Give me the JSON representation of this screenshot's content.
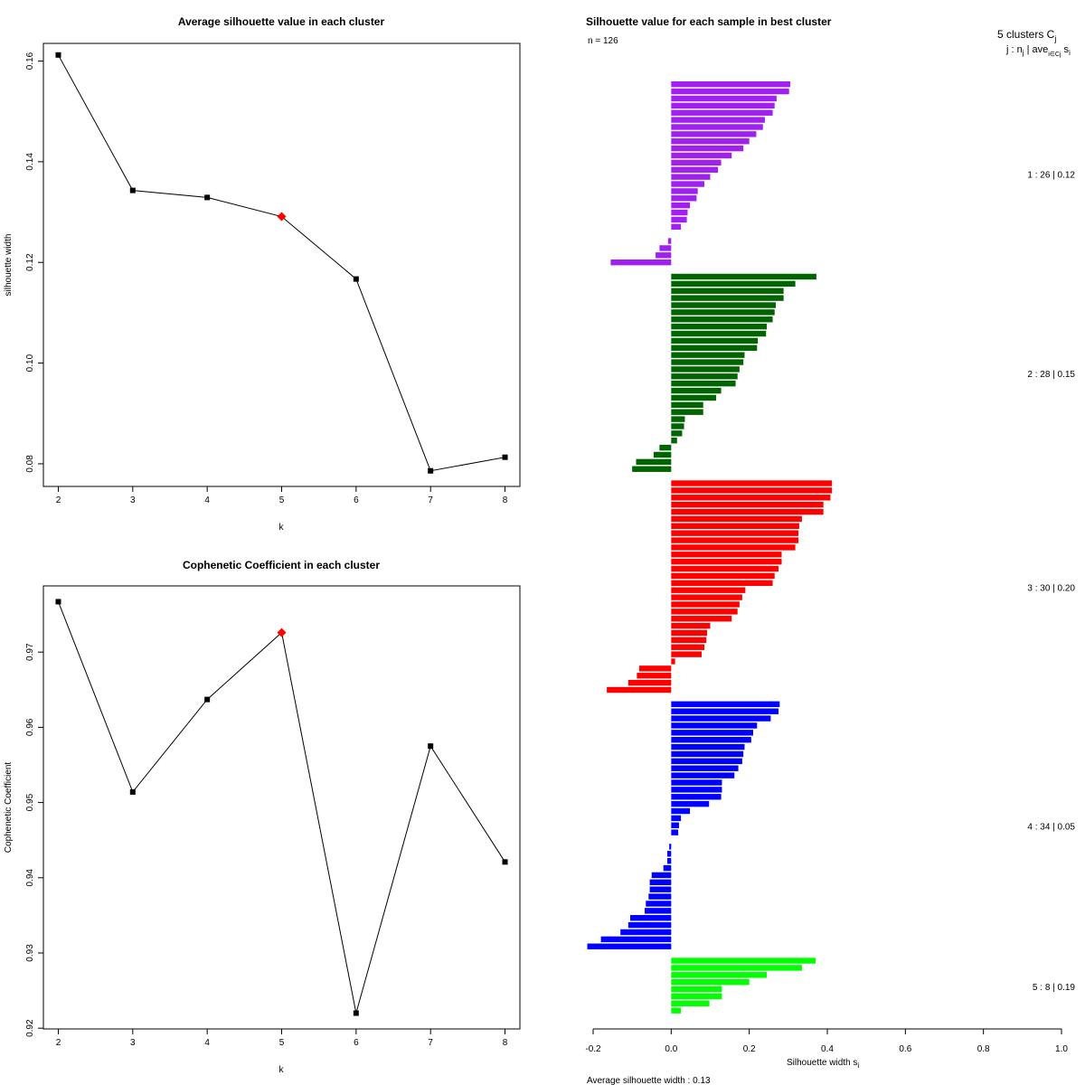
{
  "chart_data": [
    {
      "type": "line",
      "title": "Average silhouette value in each cluster",
      "xlabel": "k",
      "ylabel": "silhouette width",
      "x": [
        2,
        3,
        4,
        5,
        6,
        7,
        8
      ],
      "values": [
        0.1612,
        0.1343,
        0.1329,
        0.1291,
        0.1167,
        0.0786,
        0.0813
      ],
      "highlight_k": 5,
      "highlight_color": "#ff0000",
      "point_color": "#000000",
      "xlim": [
        1.8,
        8.2
      ],
      "ylim": [
        0.0755,
        0.1635
      ],
      "xticks": [
        "2",
        "3",
        "4",
        "5",
        "6",
        "7",
        "8"
      ],
      "yticks": [
        {
          "value": 0.08,
          "label": "0.08"
        },
        {
          "value": 0.1,
          "label": "0.10"
        },
        {
          "value": 0.12,
          "label": "0.12"
        },
        {
          "value": 0.14,
          "label": "0.14"
        },
        {
          "value": 0.16,
          "label": "0.16"
        }
      ]
    },
    {
      "type": "line",
      "title": "Cophenetic Coefficient in each cluster",
      "xlabel": "k",
      "ylabel": "Cophenetic Coefficient",
      "x": [
        2,
        3,
        4,
        5,
        6,
        7,
        8
      ],
      "values": [
        0.9767,
        0.9514,
        0.9637,
        0.9726,
        0.922,
        0.9575,
        0.9421
      ],
      "highlight_k": 5,
      "highlight_color": "#ff0000",
      "point_color": "#000000",
      "xlim": [
        1.8,
        8.2
      ],
      "ylim": [
        0.9199,
        0.9788
      ],
      "xticks": [
        "2",
        "3",
        "4",
        "5",
        "6",
        "7",
        "8"
      ],
      "yticks": [
        {
          "value": 0.92,
          "label": "0.92"
        },
        {
          "value": 0.93,
          "label": "0.93"
        },
        {
          "value": 0.94,
          "label": "0.94"
        },
        {
          "value": 0.95,
          "label": "0.95"
        },
        {
          "value": 0.96,
          "label": "0.96"
        },
        {
          "value": 0.97,
          "label": "0.97"
        }
      ]
    },
    {
      "type": "bar",
      "orientation": "horizontal",
      "title": "Silhouette value for each sample in best cluster",
      "n_label": "n = 126",
      "header_line1": "5  clusters  C",
      "header_line1_sub": "j",
      "header_line2": "j :  n",
      "header_line2_sub": "j",
      "header_line2_rest": " | ave",
      "header_line2_sub2": "i∈Cj",
      "header_line2_end": " s",
      "header_line2_sub3": "i",
      "xlabel": "Silhouette width s",
      "xlabel_sub": "i",
      "footer": "Average silhouette width :  0.13",
      "xlim": [
        -0.2,
        1.0
      ],
      "xticks": [
        {
          "value": -0.2,
          "label": "-0.2"
        },
        {
          "value": 0.0,
          "label": "0.0"
        },
        {
          "value": 0.2,
          "label": "0.2"
        },
        {
          "value": 0.4,
          "label": "0.4"
        },
        {
          "value": 0.6,
          "label": "0.6"
        },
        {
          "value": 0.8,
          "label": "0.8"
        },
        {
          "value": 1.0,
          "label": "1.0"
        }
      ],
      "clusters": [
        {
          "label": "1 :  26  |  0.12",
          "color": "#a020f0",
          "values": [
            0.305,
            0.302,
            0.27,
            0.265,
            0.26,
            0.24,
            0.235,
            0.218,
            0.2,
            0.185,
            0.155,
            0.128,
            0.12,
            0.1,
            0.085,
            0.068,
            0.065,
            0.048,
            0.042,
            0.04,
            0.025,
            0.0,
            -0.008,
            -0.03,
            -0.04,
            -0.155
          ]
        },
        {
          "label": "2 :  28  |  0.15",
          "color": "#006400",
          "values": [
            0.372,
            0.318,
            0.288,
            0.288,
            0.268,
            0.265,
            0.26,
            0.245,
            0.243,
            0.222,
            0.22,
            0.188,
            0.185,
            0.175,
            0.17,
            0.165,
            0.128,
            0.115,
            0.082,
            0.082,
            0.035,
            0.033,
            0.028,
            0.015,
            -0.03,
            -0.045,
            -0.09,
            -0.1
          ]
        },
        {
          "label": "3 :  30  |  0.20",
          "color": "#ff0000",
          "values": [
            0.412,
            0.412,
            0.408,
            0.39,
            0.39,
            0.335,
            0.328,
            0.326,
            0.326,
            0.318,
            0.283,
            0.283,
            0.275,
            0.265,
            0.26,
            0.19,
            0.182,
            0.175,
            0.17,
            0.155,
            0.1,
            0.092,
            0.09,
            0.085,
            0.078,
            0.01,
            -0.082,
            -0.088,
            -0.11,
            -0.165
          ]
        },
        {
          "label": "4 :  34  |  0.05",
          "color": "#0000ff",
          "values": [
            0.278,
            0.275,
            0.255,
            0.22,
            0.21,
            0.205,
            0.188,
            0.185,
            0.182,
            0.172,
            0.162,
            0.13,
            0.13,
            0.128,
            0.097,
            0.048,
            0.025,
            0.02,
            0.018,
            0.0,
            -0.005,
            -0.01,
            -0.01,
            -0.02,
            -0.05,
            -0.055,
            -0.055,
            -0.058,
            -0.065,
            -0.068,
            -0.105,
            -0.11,
            -0.13,
            -0.18
          ]
        },
        {
          "label": "5 :   8  |  0.19",
          "color": "#00ff00",
          "values": [
            0.37,
            0.335,
            0.245,
            0.2,
            0.13,
            0.13,
            0.098,
            0.025
          ]
        }
      ]
    }
  ],
  "fourth_cluster_extra_value": -0.215
}
